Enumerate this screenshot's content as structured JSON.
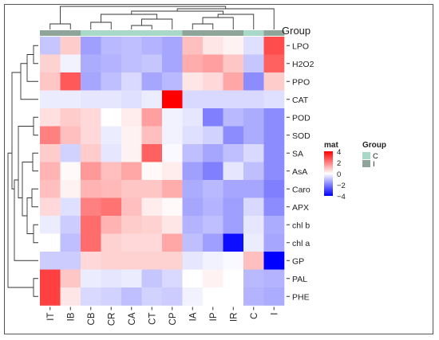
{
  "chart_data": {
    "type": "heatmap",
    "columns": [
      "IT",
      "IB",
      "CB",
      "CR",
      "CA",
      "CT",
      "CP",
      "IA",
      "IP",
      "IR",
      "C",
      "I"
    ],
    "rows": [
      "LPO",
      "H2O2",
      "PPO",
      "CAT",
      "POD",
      "SOD",
      "SA",
      "AsA",
      "Caro",
      "APX",
      "chl b",
      "chl a",
      "GP",
      "PAL",
      "PHE"
    ],
    "column_groups": [
      "I",
      "I",
      "C",
      "C",
      "C",
      "C",
      "C",
      "I",
      "I",
      "I",
      "C",
      "I"
    ],
    "values": [
      [
        -0.9,
        0.8,
        -1.5,
        -1.1,
        -1.0,
        -1.2,
        -1.4,
        1.0,
        0.4,
        0.2,
        -0.5,
        2.8
      ],
      [
        0.7,
        -0.2,
        -1.3,
        -1.2,
        -1.0,
        -0.9,
        -1.4,
        1.3,
        1.5,
        0.9,
        -0.9,
        2.5
      ],
      [
        0.9,
        2.6,
        -1.4,
        -1.0,
        -0.6,
        -1.4,
        -1.1,
        0.4,
        0.6,
        1.4,
        -1.8,
        0.8
      ],
      [
        -0.3,
        -0.3,
        -0.4,
        -0.4,
        -0.5,
        -0.3,
        4.0,
        -0.6,
        -0.6,
        -0.6,
        -0.6,
        -0.5
      ],
      [
        0.5,
        0.8,
        0.6,
        0.0,
        0.3,
        1.5,
        -0.2,
        -0.4,
        -2.0,
        -1.1,
        -1.3,
        -1.8
      ],
      [
        2.0,
        1.0,
        0.6,
        -0.3,
        0.2,
        1.0,
        -0.2,
        -0.5,
        -0.7,
        -1.8,
        -1.3,
        -1.8
      ],
      [
        0.8,
        -0.7,
        0.8,
        -0.4,
        0.2,
        2.5,
        -0.1,
        -1.0,
        -1.4,
        -1.0,
        -0.6,
        -1.8
      ],
      [
        1.2,
        0.1,
        1.6,
        1.0,
        1.4,
        0.1,
        0.3,
        -1.5,
        -2.0,
        -0.4,
        -1.0,
        -1.8
      ],
      [
        1.0,
        0.2,
        1.2,
        1.1,
        0.9,
        0.9,
        1.3,
        -1.3,
        -1.1,
        -1.4,
        -1.4,
        -2.0
      ],
      [
        0.6,
        -0.5,
        2.0,
        2.2,
        1.0,
        0.3,
        0.1,
        -1.4,
        -1.2,
        -1.5,
        -0.6,
        -1.8
      ],
      [
        -0.3,
        -0.8,
        2.3,
        1.2,
        0.8,
        0.7,
        0.4,
        -1.2,
        -1.0,
        -1.5,
        -0.4,
        -1.3
      ],
      [
        0.0,
        -1.0,
        2.3,
        0.7,
        0.6,
        0.6,
        1.4,
        -1.0,
        -1.5,
        -3.8,
        -0.3,
        -1.4
      ],
      [
        -0.8,
        -0.8,
        0.6,
        0.7,
        0.7,
        0.7,
        0.7,
        -0.4,
        -0.2,
        -0.1,
        1.0,
        -4.0
      ],
      [
        3.0,
        0.9,
        -0.3,
        -0.4,
        -0.3,
        -0.9,
        -0.6,
        0.0,
        0.2,
        0.0,
        -1.1,
        -1.2
      ],
      [
        3.0,
        0.4,
        -0.6,
        -0.7,
        -1.0,
        -0.7,
        -0.8,
        -0.2,
        0.0,
        0.0,
        -1.2,
        -1.3
      ]
    ],
    "colorbar": {
      "title": "mat",
      "ticks": [
        "4",
        "2",
        "0",
        "−2",
        "−4"
      ],
      "colors": [
        "#ff0000",
        "#ffffff",
        "#0000ff"
      ]
    },
    "group_legend": {
      "title": "Group",
      "entries": [
        {
          "label": "C",
          "color": "#a8d8c8"
        },
        {
          "label": "I",
          "color": "#8fa59a"
        }
      ]
    },
    "annotation_title": "Group"
  }
}
